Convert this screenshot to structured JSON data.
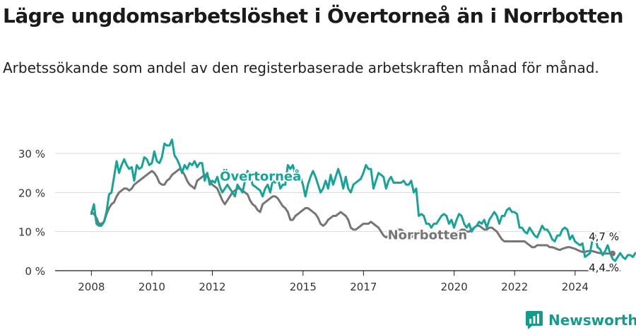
{
  "header": {
    "title": "Lägre ungdomsarbetslöshet i Övertorneå än i Norrbotten",
    "subtitle": "Arbetssökande som andel av den registerbaserade arbetskraften månad för månad."
  },
  "brand": {
    "name": "Newsworthy",
    "color": "#159b8c"
  },
  "colors": {
    "overtornea": "#17a398",
    "norrbotten": "#757575",
    "grid": "#d8d8d8",
    "axis": "#1a1a1a"
  },
  "chart_data": {
    "type": "line",
    "title": "Lägre ungdomsarbetslöshet i Övertorneå än i Norrbotten",
    "subtitle": "Arbetssökande som andel av den registerbaserade arbetskraften månad för månad.",
    "x_start": 2008.0,
    "x_step": 0.0833,
    "xlim": [
      2006.8,
      2025.5
    ],
    "ylim": [
      0,
      30
    ],
    "grid": true,
    "x_tick_values": [
      2008,
      2010,
      2012,
      2015,
      2017,
      2020,
      2022,
      2024
    ],
    "x_tick_labels": [
      "2008",
      "2010",
      "2012",
      "2015",
      "2017",
      "2020",
      "2022",
      "2024"
    ],
    "y_tick_values": [
      0,
      10,
      20,
      30
    ],
    "y_tick_labels": [
      "0 %",
      "10 %",
      "20 %",
      "30 %"
    ],
    "series": [
      {
        "name": "Övertorneå",
        "color": "#17a398",
        "values": [
          14.5,
          17,
          12,
          11.5,
          11.5,
          12.5,
          15,
          19.5,
          20,
          24,
          28,
          25,
          27,
          28.5,
          27,
          26,
          26.5,
          23,
          27,
          26,
          26.5,
          29,
          28.5,
          27,
          27.5,
          30.5,
          28,
          27.5,
          29,
          32.5,
          32,
          32,
          33.5,
          29.5,
          28.5,
          27,
          25,
          27,
          26,
          27.5,
          27,
          28,
          26.5,
          27.5,
          27.5,
          23,
          25,
          22,
          23,
          22.5,
          24,
          21.5,
          20,
          21,
          22,
          21,
          20,
          19,
          22,
          21,
          20,
          23,
          25.5,
          24.5,
          22,
          21.5,
          21,
          20.5,
          19,
          21,
          22,
          20,
          23,
          22.5,
          24,
          21,
          22,
          22,
          27,
          26,
          27,
          24.5,
          23,
          24,
          22,
          19,
          22,
          24,
          25.5,
          24,
          22,
          20,
          21,
          23,
          21,
          24.5,
          22,
          24,
          26,
          24,
          21,
          24,
          21,
          20,
          22,
          22.5,
          23,
          23.5,
          25,
          27,
          26,
          26,
          21,
          23,
          25,
          24.5,
          24,
          21,
          23,
          24,
          22.5,
          22.5,
          22.5,
          22.5,
          23,
          22,
          22,
          23,
          20,
          21,
          14,
          14.5,
          14,
          12,
          12,
          11,
          12,
          12,
          13,
          14,
          14.5,
          14,
          12,
          13,
          11,
          13,
          14.5,
          14,
          12,
          11,
          12,
          10,
          11,
          11.5,
          12.5,
          12,
          13,
          11,
          13,
          14,
          15,
          14,
          12,
          14,
          14,
          15.5,
          16,
          15,
          15,
          14.5,
          11,
          11,
          10,
          9.5,
          11,
          10,
          9,
          8.5,
          10,
          11.5,
          10.5,
          10.5,
          9.5,
          8,
          7.5,
          9,
          9,
          10.5,
          11,
          10.5,
          8,
          9,
          7.5,
          7,
          6.5,
          7,
          3.5,
          4,
          4.5,
          8,
          9,
          6,
          5.5,
          4,
          5,
          6.5,
          4.5,
          3,
          2.5,
          3.5,
          4.5,
          3.5,
          3,
          4,
          4,
          3.5,
          4.5,
          4.5,
          4.7
        ]
      },
      {
        "name": "Norrbotten",
        "color": "#757575",
        "values": [
          15,
          14.5,
          13.5,
          12,
          12,
          12.5,
          14.5,
          16,
          17,
          17.5,
          19,
          20,
          20.5,
          21,
          21,
          20.5,
          21,
          22,
          22.5,
          23,
          23.5,
          24,
          24.5,
          25,
          25.5,
          25,
          24,
          22.5,
          22,
          22,
          23,
          23.5,
          24.5,
          25,
          25.5,
          26,
          25.5,
          24.5,
          23,
          22,
          21.5,
          21,
          23,
          23.5,
          24,
          24.5,
          24.5,
          23,
          22,
          21.5,
          21,
          19.5,
          18,
          17,
          18,
          19,
          20,
          20.5,
          21,
          21,
          20.5,
          20,
          19.5,
          18,
          17,
          16.5,
          15.5,
          15,
          17,
          17.5,
          18,
          18.5,
          19,
          19,
          18.5,
          17.5,
          16.5,
          16,
          15,
          13,
          13,
          14,
          14.5,
          15,
          15.5,
          16,
          16,
          15.5,
          15,
          14.5,
          13.5,
          12,
          11.5,
          12,
          13,
          13.5,
          14,
          14,
          14.5,
          15,
          14.5,
          14,
          13,
          11,
          10.5,
          10.5,
          11,
          11.5,
          12,
          12,
          12,
          12.5,
          12,
          11.5,
          11,
          10,
          9,
          8.5,
          9,
          9.5,
          10,
          10.5,
          10.5,
          10.5,
          10,
          9.5,
          9,
          8.5,
          9,
          9.5,
          10,
          10.5,
          10,
          9.5,
          9,
          8.5,
          9,
          9.5,
          10,
          10,
          9.5,
          9,
          8.5,
          8.5,
          9,
          9.5,
          10,
          10.5,
          10.5,
          10,
          10,
          10.5,
          11,
          11.5,
          11.5,
          11,
          10.5,
          10.5,
          11,
          11,
          10.5,
          10,
          9,
          8,
          7.5,
          7.5,
          7.5,
          7.5,
          7.5,
          7.5,
          7.5,
          7.5,
          7.5,
          7,
          6.5,
          6,
          6,
          6.5,
          6.5,
          6.5,
          6.5,
          6.5,
          6,
          6,
          5.8,
          5.5,
          5.3,
          5.6,
          5.8,
          6,
          6,
          5.8,
          5.6,
          5.3,
          5,
          4.8,
          4.8,
          5,
          5,
          5,
          4.8,
          4.6,
          4.5,
          4.4,
          4.4,
          4.4,
          4.4,
          4.4
        ]
      }
    ],
    "annotations": [
      {
        "text": "Övertorneå",
        "series": "Övertorneå"
      },
      {
        "text": "Norrbotten",
        "series": "Norrbotten"
      },
      {
        "text": "4,7 %",
        "series": "Övertorneå",
        "kind": "end-value"
      },
      {
        "text": "4,4 %",
        "series": "Norrbotten",
        "kind": "end-value"
      }
    ]
  }
}
